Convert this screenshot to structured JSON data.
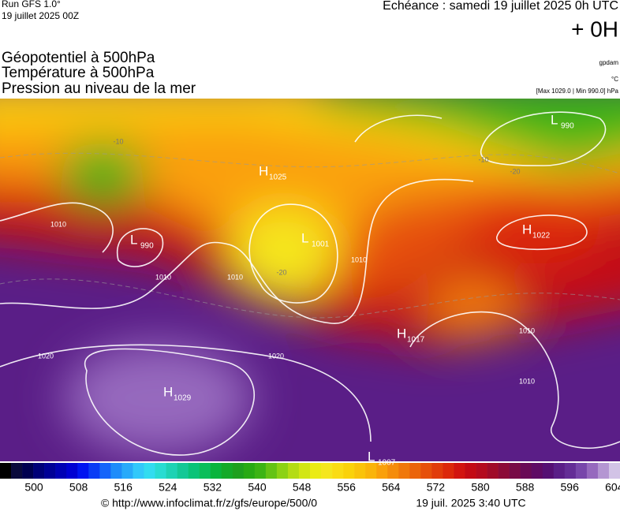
{
  "header": {
    "model": "Run GFS 1.0°",
    "run": "19 juillet 2025 00Z",
    "forecast": "Echéance : samedi 19 juillet 2025 0h UTC",
    "lead": "+ 0H",
    "titles": [
      "Géopotentiel à 500hPa",
      "Température à 500hPa",
      "Pression au niveau de la mer"
    ],
    "units": [
      "gpdam",
      "°C",
      "[Max 1029.0 | Min 990.0] hPa"
    ]
  },
  "map": {
    "centers": [
      {
        "letter": "H",
        "value": "1029"
      },
      {
        "letter": "H",
        "value": "1025"
      },
      {
        "letter": "L",
        "value": "1001"
      },
      {
        "letter": "L",
        "value": "990"
      },
      {
        "letter": "H",
        "value": "1022"
      },
      {
        "letter": "L",
        "value": "990"
      },
      {
        "letter": "H",
        "value": "1017"
      },
      {
        "letter": "L",
        "value": "1007"
      }
    ],
    "isobar_labels": [
      "1010",
      "1010",
      "1010",
      "1020",
      "1020",
      "1010",
      "1010",
      "1010"
    ],
    "temperature_labels": [
      "-10",
      "-20",
      "-20",
      "-10"
    ]
  },
  "legend": {
    "ticks": [
      500,
      508,
      516,
      524,
      532,
      540,
      548,
      556,
      564,
      572,
      580,
      588,
      596,
      604
    ],
    "colors": [
      "#000000",
      "#0a0a3c",
      "#000050",
      "#000078",
      "#000096",
      "#0000b4",
      "#0000d2",
      "#0014f0",
      "#0a3cf5",
      "#1464fa",
      "#1e8cfa",
      "#28aafa",
      "#32c8fa",
      "#32dcf0",
      "#28dcd2",
      "#1ed2b4",
      "#14c896",
      "#0ac378",
      "#0abe5a",
      "#0ab43c",
      "#14aa28",
      "#1ea01e",
      "#28aa14",
      "#3cb414",
      "#64c314",
      "#8cd214",
      "#b4dc14",
      "#d2e614",
      "#ebeb14",
      "#f5e61e",
      "#fadc14",
      "#fad20a",
      "#fac30a",
      "#fab40a",
      "#faa00a",
      "#f58c0a",
      "#f0780a",
      "#eb640a",
      "#e6500a",
      "#e13c0a",
      "#dc280a",
      "#d2140f",
      "#c30a14",
      "#b40a1e",
      "#a00a28",
      "#8c0a37",
      "#780a46",
      "#690a55",
      "#5f0a64",
      "#550f73",
      "#5a1e87",
      "#642d96",
      "#7846aa",
      "#9669be",
      "#b496d2",
      "#d2c3e6"
    ]
  },
  "footer": {
    "url": "© http://www.infoclimat.fr/z/gfs/europe/500/0",
    "date": "19 juil. 2025  3:40 UTC"
  }
}
